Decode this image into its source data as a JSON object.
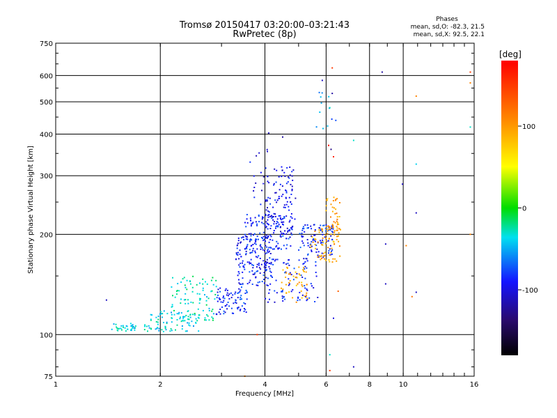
{
  "title": "Tromsø 20150417 03:20:00–03:21:43",
  "subtitle": "RwPretec (8p)",
  "stats": {
    "heading": "Phases",
    "line_o": "mean, sd,O: -82.3, 21.5",
    "line_x": "mean, sd,X:  92.5, 22.1"
  },
  "colorbar": {
    "label": "[deg]",
    "ticks": [
      {
        "value": 100,
        "label": "100"
      },
      {
        "value": 0,
        "label": "0"
      },
      {
        "value": -100,
        "label": "-100"
      }
    ],
    "range": [
      -180,
      180
    ]
  },
  "chart_data": {
    "type": "scatter",
    "xlabel": "Frequency [MHz]",
    "ylabel": "Stationary phase Virtual Height [km]",
    "xscale": "log",
    "yscale": "log",
    "xlim": [
      1,
      16
    ],
    "ylim": [
      75,
      750
    ],
    "xticks": [
      {
        "value": 1,
        "label": "1"
      },
      {
        "value": 2,
        "label": "2"
      },
      {
        "value": 4,
        "label": "4"
      },
      {
        "value": 6,
        "label": "6"
      },
      {
        "value": 8,
        "label": "8"
      },
      {
        "value": 10,
        "label": "10"
      },
      {
        "value": 16,
        "label": "16"
      }
    ],
    "yticks": [
      {
        "value": 75,
        "label": "75"
      },
      {
        "value": 100,
        "label": "100"
      },
      {
        "value": 200,
        "label": "200"
      },
      {
        "value": 300,
        "label": "300"
      },
      {
        "value": 400,
        "label": "400"
      },
      {
        "value": 500,
        "label": "500"
      },
      {
        "value": 600,
        "label": "600"
      },
      {
        "value": 750,
        "label": "750"
      }
    ],
    "grid": true,
    "color_variable": "phase [deg]",
    "clusters": [
      {
        "fmin": 1.45,
        "fmax": 1.7,
        "hmin": 102,
        "hmax": 108,
        "phase": -35,
        "n": 35
      },
      {
        "fmin": 1.8,
        "fmax": 2.6,
        "hmin": 102,
        "hmax": 118,
        "phase": -38,
        "n": 90
      },
      {
        "fmin": 2.15,
        "fmax": 2.9,
        "hmin": 110,
        "hmax": 150,
        "phase": -30,
        "n": 90
      },
      {
        "fmin": 2.9,
        "fmax": 3.6,
        "hmin": 115,
        "hmax": 140,
        "phase": -85,
        "n": 80
      },
      {
        "fmin": 3.3,
        "fmax": 4.2,
        "hmin": 140,
        "hmax": 200,
        "phase": -90,
        "n": 160
      },
      {
        "fmin": 3.5,
        "fmax": 4.8,
        "hmin": 180,
        "hmax": 230,
        "phase": -85,
        "n": 130
      },
      {
        "fmin": 4.0,
        "fmax": 4.9,
        "hmin": 200,
        "hmax": 320,
        "phase": -95,
        "n": 110
      },
      {
        "fmin": 4.0,
        "fmax": 5.7,
        "hmin": 125,
        "hmax": 170,
        "phase": -90,
        "n": 90
      },
      {
        "fmin": 4.4,
        "fmax": 5.3,
        "hmin": 125,
        "hmax": 160,
        "phase": 90,
        "n": 45
      },
      {
        "fmin": 5.0,
        "fmax": 6.3,
        "hmin": 170,
        "hmax": 215,
        "phase": -85,
        "n": 100
      },
      {
        "fmin": 5.4,
        "fmax": 6.6,
        "hmin": 165,
        "hmax": 210,
        "phase": 95,
        "n": 60
      },
      {
        "fmin": 6.0,
        "fmax": 6.6,
        "hmin": 195,
        "hmax": 260,
        "phase": 100,
        "n": 50
      },
      {
        "fmin": 5.6,
        "fmax": 6.5,
        "hmin": 400,
        "hmax": 540,
        "phase": -60,
        "n": 12
      },
      {
        "fmin": 3.6,
        "fmax": 4.4,
        "hmin": 240,
        "hmax": 380,
        "phase": -100,
        "n": 18
      }
    ],
    "scattered": [
      {
        "f": 5.85,
        "h": 580,
        "phase": -110
      },
      {
        "f": 6.25,
        "h": 632,
        "phase": 150
      },
      {
        "f": 6.25,
        "h": 530,
        "phase": -120
      },
      {
        "f": 6.15,
        "h": 480,
        "phase": -30
      },
      {
        "f": 6.1,
        "h": 370,
        "phase": 170
      },
      {
        "f": 6.3,
        "h": 342,
        "phase": 160
      },
      {
        "f": 6.2,
        "h": 360,
        "phase": -130
      },
      {
        "f": 7.2,
        "h": 383,
        "phase": -30
      },
      {
        "f": 8.7,
        "h": 614,
        "phase": -120
      },
      {
        "f": 10.9,
        "h": 520,
        "phase": 110
      },
      {
        "f": 10.9,
        "h": 325,
        "phase": -40
      },
      {
        "f": 10.9,
        "h": 232,
        "phase": -110
      },
      {
        "f": 9.95,
        "h": 283,
        "phase": -110
      },
      {
        "f": 8.9,
        "h": 187,
        "phase": -110
      },
      {
        "f": 8.9,
        "h": 142,
        "phase": -110
      },
      {
        "f": 10.2,
        "h": 185,
        "phase": 110
      },
      {
        "f": 10.6,
        "h": 130,
        "phase": 120
      },
      {
        "f": 10.9,
        "h": 134,
        "phase": -110
      },
      {
        "f": 15.6,
        "h": 614,
        "phase": 150
      },
      {
        "f": 15.6,
        "h": 570,
        "phase": 110
      },
      {
        "f": 15.6,
        "h": 200,
        "phase": 110
      },
      {
        "f": 15.6,
        "h": 420,
        "phase": -30
      },
      {
        "f": 6.3,
        "h": 112,
        "phase": -100
      },
      {
        "f": 6.15,
        "h": 87,
        "phase": -30
      },
      {
        "f": 6.15,
        "h": 78,
        "phase": 150
      },
      {
        "f": 7.2,
        "h": 80,
        "phase": -110
      },
      {
        "f": 3.5,
        "h": 75,
        "phase": 110
      },
      {
        "f": 3.8,
        "h": 100,
        "phase": 150
      },
      {
        "f": 1.4,
        "h": 127,
        "phase": -110
      },
      {
        "f": 6.5,
        "h": 135,
        "phase": 130
      },
      {
        "f": 4.1,
        "h": 403,
        "phase": -110
      },
      {
        "f": 4.5,
        "h": 392,
        "phase": -120
      }
    ]
  }
}
